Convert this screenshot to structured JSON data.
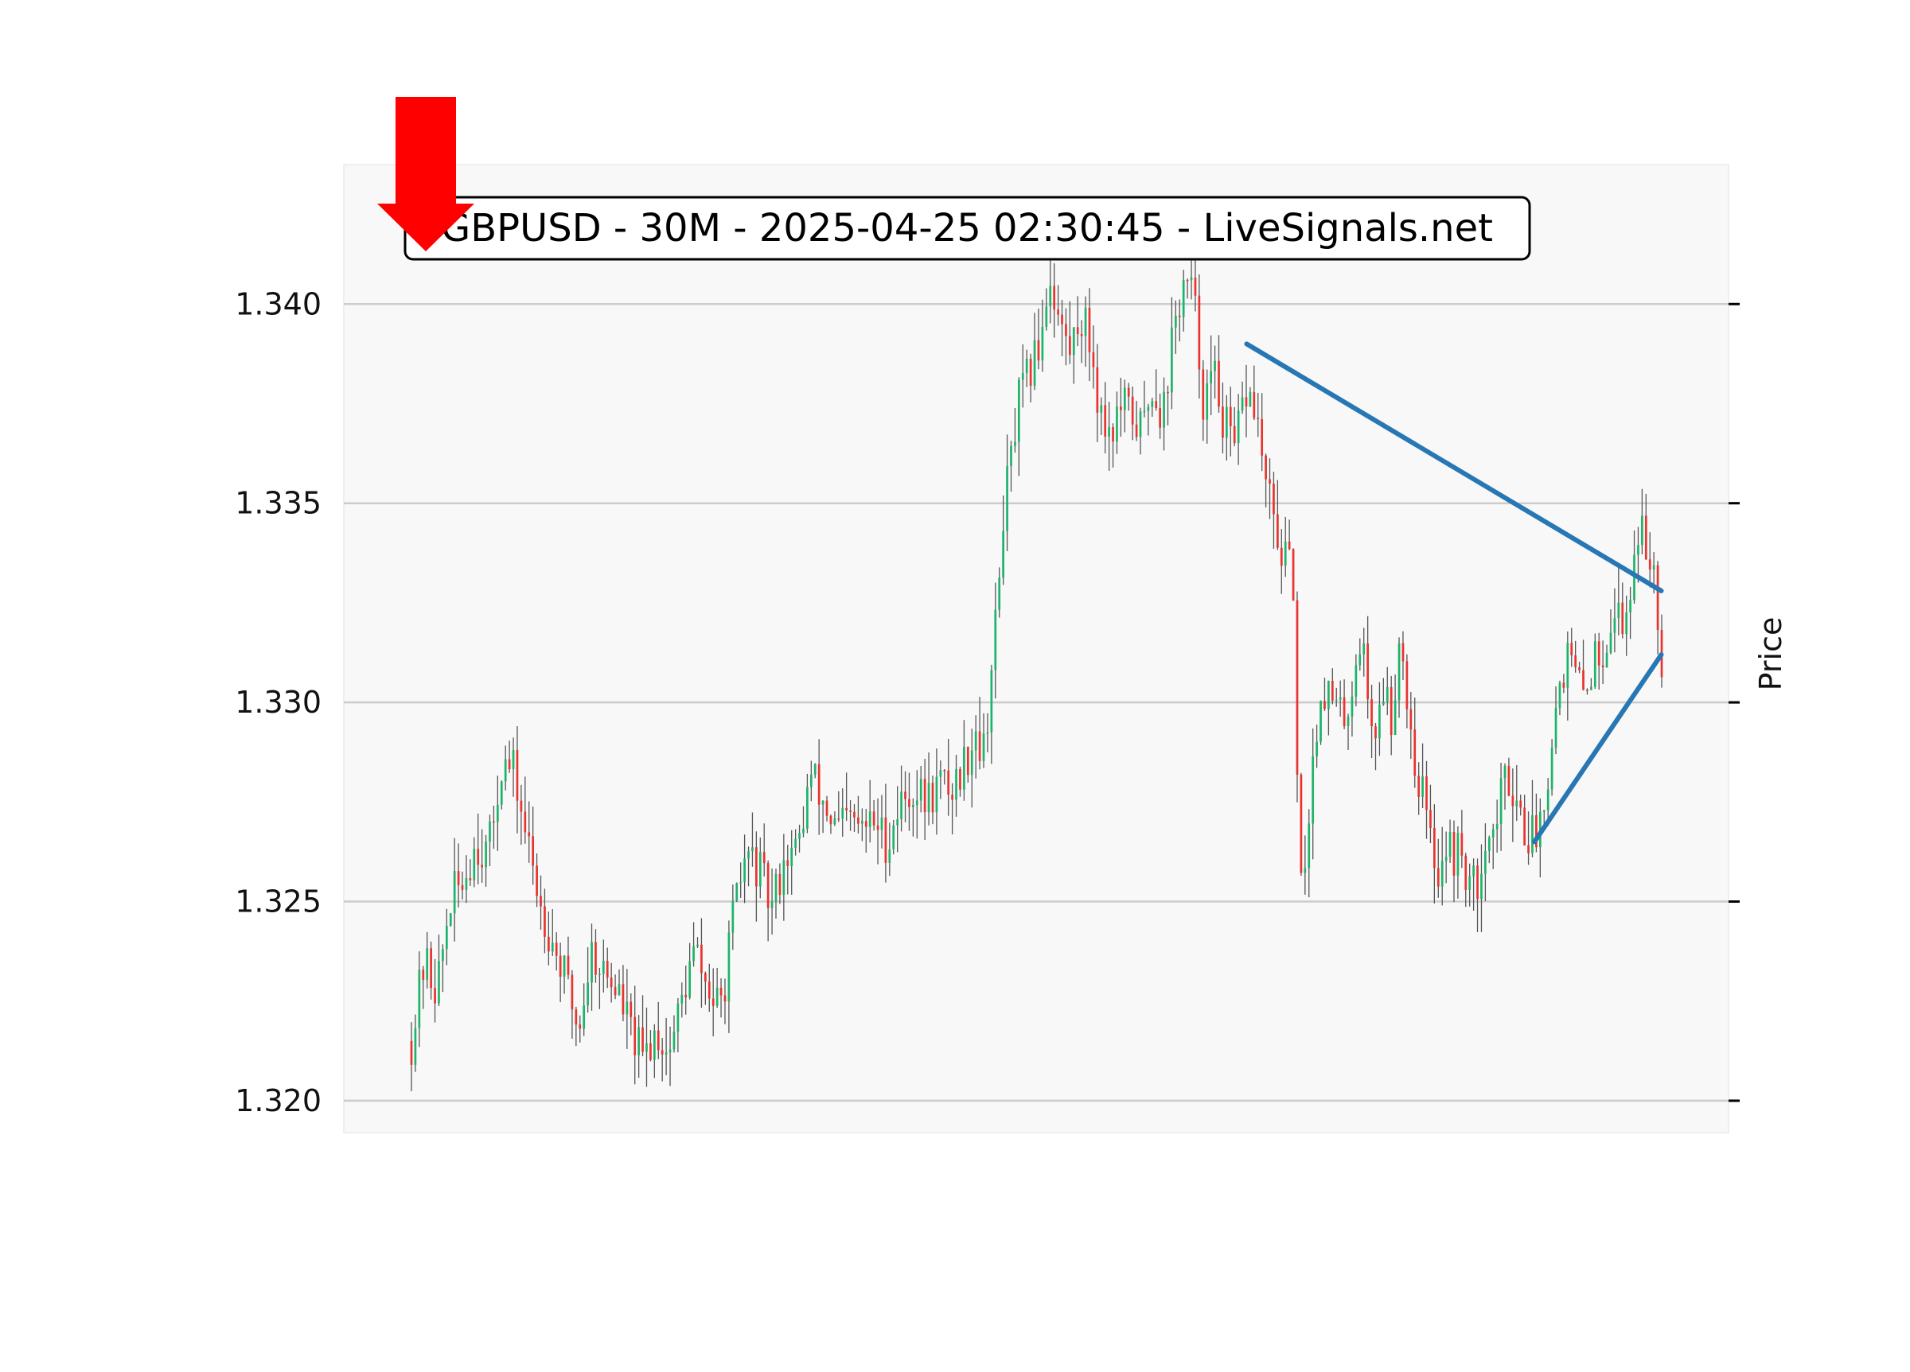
{
  "chart_data": {
    "type": "candlestick",
    "title": "GBPUSD - 30M - 2025-04-25 02:30:45 - LiveSignals.net",
    "ylabel": "Price",
    "xlabel": "",
    "ylim": [
      1.3192,
      1.3435
    ],
    "y_ticks": [
      "1.320",
      "1.325",
      "1.330",
      "1.335",
      "1.340"
    ],
    "y_tick_values": [
      1.32,
      1.325,
      1.33,
      1.335,
      1.34
    ],
    "n_bars": 320,
    "grid": true,
    "colors": {
      "up": "#1db36a",
      "down": "#e8332e",
      "wick": "#555555",
      "trendline": "#2777b5",
      "signal_arrow": "#ff0000",
      "plot_bg": "#f8f8f8",
      "grid": "#cccccc"
    },
    "price_path": [
      [
        0,
        1.3215
      ],
      [
        5,
        1.3235
      ],
      [
        10,
        1.3228
      ],
      [
        15,
        1.325
      ],
      [
        20,
        1.3255
      ],
      [
        25,
        1.3265
      ],
      [
        30,
        1.3262
      ],
      [
        35,
        1.3285
      ],
      [
        40,
        1.3282
      ],
      [
        45,
        1.3265
      ],
      [
        50,
        1.325
      ],
      [
        55,
        1.324
      ],
      [
        60,
        1.323
      ],
      [
        65,
        1.3218
      ],
      [
        70,
        1.3238
      ],
      [
        75,
        1.3232
      ],
      [
        80,
        1.3228
      ],
      [
        85,
        1.3218
      ],
      [
        90,
        1.321
      ],
      [
        95,
        1.3218
      ],
      [
        100,
        1.3212
      ],
      [
        105,
        1.3225
      ],
      [
        110,
        1.3238
      ],
      [
        115,
        1.3228
      ],
      [
        120,
        1.3222
      ],
      [
        125,
        1.3245
      ],
      [
        130,
        1.3262
      ],
      [
        135,
        1.3258
      ],
      [
        140,
        1.3248
      ],
      [
        145,
        1.3262
      ],
      [
        150,
        1.3262
      ],
      [
        155,
        1.3282
      ],
      [
        160,
        1.3275
      ],
      [
        165,
        1.3268
      ],
      [
        170,
        1.327
      ],
      [
        175,
        1.3268
      ],
      [
        180,
        1.327
      ],
      [
        185,
        1.3265
      ],
      [
        190,
        1.3275
      ],
      [
        195,
        1.3278
      ],
      [
        200,
        1.3275
      ],
      [
        205,
        1.328
      ],
      [
        210,
        1.3278
      ],
      [
        215,
        1.3285
      ],
      [
        220,
        1.3295
      ],
      [
        222,
        1.3285
      ],
      [
        225,
        1.3305
      ],
      [
        228,
        1.3325
      ],
      [
        230,
        1.3348
      ],
      [
        233,
        1.336
      ],
      [
        236,
        1.3375
      ],
      [
        240,
        1.3382
      ],
      [
        244,
        1.339
      ],
      [
        248,
        1.3408
      ],
      [
        252,
        1.3395
      ],
      [
        256,
        1.3388
      ],
      [
        260,
        1.3398
      ],
      [
        264,
        1.339
      ],
      [
        268,
        1.3372
      ],
      [
        272,
        1.3368
      ],
      [
        276,
        1.3374
      ],
      [
        280,
        1.3372
      ],
      [
        284,
        1.3368
      ],
      [
        288,
        1.338
      ],
      [
        292,
        1.3372
      ],
      [
        296,
        1.3392
      ],
      [
        300,
        1.3405
      ],
      [
        304,
        1.3402
      ],
      [
        308,
        1.3375
      ],
      [
        312,
        1.3382
      ],
      [
        316,
        1.337
      ],
      [
        320,
        1.3362
      ],
      [
        324,
        1.3378
      ],
      [
        328,
        1.3374
      ],
      [
        332,
        1.3355
      ],
      [
        336,
        1.3342
      ],
      [
        340,
        1.3335
      ],
      [
        343,
        1.333
      ],
      [
        345,
        1.3248
      ],
      [
        348,
        1.3265
      ],
      [
        351,
        1.329
      ],
      [
        354,
        1.3305
      ],
      [
        358,
        1.33
      ],
      [
        362,
        1.3295
      ],
      [
        366,
        1.3305
      ],
      [
        369,
        1.3318
      ],
      [
        372,
        1.33
      ],
      [
        375,
        1.3292
      ],
      [
        378,
        1.3305
      ],
      [
        381,
        1.3295
      ],
      [
        384,
        1.3318
      ],
      [
        387,
        1.3302
      ],
      [
        390,
        1.3285
      ],
      [
        393,
        1.3278
      ],
      [
        396,
        1.3265
      ],
      [
        399,
        1.3258
      ],
      [
        402,
        1.3265
      ],
      [
        405,
        1.3262
      ],
      [
        408,
        1.3262
      ],
      [
        411,
        1.3255
      ],
      [
        414,
        1.3252
      ],
      [
        417,
        1.3268
      ],
      [
        420,
        1.3265
      ],
      [
        423,
        1.3275
      ],
      [
        426,
        1.3282
      ],
      [
        429,
        1.3278
      ],
      [
        432,
        1.327
      ],
      [
        435,
        1.3266
      ],
      [
        438,
        1.3268
      ],
      [
        441,
        1.328
      ],
      [
        444,
        1.3295
      ],
      [
        447,
        1.3308
      ],
      [
        450,
        1.3312
      ],
      [
        453,
        1.3305
      ],
      [
        456,
        1.3302
      ],
      [
        459,
        1.331
      ],
      [
        462,
        1.3312
      ],
      [
        465,
        1.3318
      ],
      [
        468,
        1.3325
      ],
      [
        471,
        1.3318
      ],
      [
        474,
        1.333
      ],
      [
        477,
        1.3345
      ],
      [
        480,
        1.3338
      ],
      [
        483,
        1.3335
      ],
      [
        486,
        1.3312
      ]
    ],
    "trendlines": [
      {
        "from": [
          0.668,
          1.339
        ],
        "to": [
          0.9997,
          1.3328
        ]
      },
      {
        "from": [
          0.8982,
          1.3265
        ],
        "to": [
          0.9997,
          1.3312
        ]
      }
    ],
    "signal": {
      "direction": "down",
      "icon": "sell-arrow-icon"
    }
  }
}
